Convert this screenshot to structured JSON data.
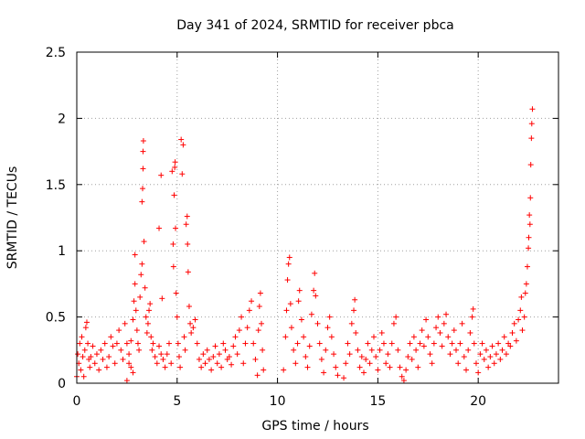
{
  "chart_data": {
    "type": "scatter",
    "title": "Day 341 of 2024, SRMTID for receiver pbca",
    "xlabel": "GPS time / hours",
    "ylabel": "SRMTID / TECUs",
    "xlim": [
      0,
      24
    ],
    "ylim": [
      0,
      2.5
    ],
    "x_ticks": [
      0,
      5,
      10,
      15,
      20
    ],
    "x_tick_labels": [
      "0",
      "5",
      "10",
      "15",
      "20"
    ],
    "y_ticks": [
      0,
      0.5,
      1,
      1.5,
      2,
      2.5
    ],
    "y_tick_labels": [
      "0",
      "0.5",
      "1",
      "1.5",
      "2",
      "2.5"
    ],
    "grid": true,
    "marker": "+",
    "series_color": "#ff0000",
    "series": [
      {
        "name": "SRMTID",
        "points": [
          [
            0.0,
            0.05
          ],
          [
            0.05,
            0.22
          ],
          [
            0.1,
            0.15
          ],
          [
            0.15,
            0.3
          ],
          [
            0.2,
            0.1
          ],
          [
            0.25,
            0.35
          ],
          [
            0.3,
            0.2
          ],
          [
            0.35,
            0.05
          ],
          [
            0.4,
            0.25
          ],
          [
            0.45,
            0.42
          ],
          [
            0.5,
            0.46
          ],
          [
            0.55,
            0.3
          ],
          [
            0.6,
            0.18
          ],
          [
            0.65,
            0.12
          ],
          [
            0.7,
            0.2
          ],
          [
            0.8,
            0.28
          ],
          [
            0.9,
            0.15
          ],
          [
            1.0,
            0.22
          ],
          [
            1.1,
            0.1
          ],
          [
            1.2,
            0.25
          ],
          [
            1.3,
            0.18
          ],
          [
            1.4,
            0.3
          ],
          [
            1.5,
            0.12
          ],
          [
            1.6,
            0.2
          ],
          [
            1.7,
            0.35
          ],
          [
            1.8,
            0.28
          ],
          [
            1.9,
            0.15
          ],
          [
            2.0,
            0.3
          ],
          [
            2.1,
            0.4
          ],
          [
            2.2,
            0.25
          ],
          [
            2.3,
            0.18
          ],
          [
            2.4,
            0.45
          ],
          [
            2.5,
            0.3
          ],
          [
            2.6,
            0.22
          ],
          [
            2.7,
            0.12
          ],
          [
            2.8,
            0.08
          ],
          [
            2.5,
            0.02
          ],
          [
            2.6,
            0.15
          ],
          [
            2.7,
            0.32
          ],
          [
            2.8,
            0.48
          ],
          [
            2.85,
            0.62
          ],
          [
            2.9,
            0.75
          ],
          [
            2.9,
            0.97
          ],
          [
            2.95,
            0.55
          ],
          [
            3.0,
            0.4
          ],
          [
            3.05,
            0.3
          ],
          [
            3.1,
            0.25
          ],
          [
            3.15,
            0.65
          ],
          [
            3.2,
            0.82
          ],
          [
            3.25,
            0.9
          ],
          [
            3.25,
            1.37
          ],
          [
            3.28,
            1.47
          ],
          [
            3.3,
            1.62
          ],
          [
            3.3,
            1.75
          ],
          [
            3.32,
            1.83
          ],
          [
            3.35,
            1.07
          ],
          [
            3.4,
            0.72
          ],
          [
            3.45,
            0.5
          ],
          [
            3.5,
            0.38
          ],
          [
            3.55,
            0.45
          ],
          [
            3.6,
            0.55
          ],
          [
            3.65,
            0.6
          ],
          [
            3.7,
            0.35
          ],
          [
            3.75,
            0.25
          ],
          [
            3.8,
            0.3
          ],
          [
            3.9,
            0.2
          ],
          [
            4.0,
            0.15
          ],
          [
            4.1,
            0.28
          ],
          [
            4.2,
            0.22
          ],
          [
            4.1,
            1.17
          ],
          [
            4.2,
            1.57
          ],
          [
            4.25,
            0.64
          ],
          [
            4.3,
            0.18
          ],
          [
            4.4,
            0.12
          ],
          [
            4.5,
            0.22
          ],
          [
            4.6,
            0.3
          ],
          [
            4.7,
            0.15
          ],
          [
            4.75,
            1.6
          ],
          [
            4.8,
            1.05
          ],
          [
            4.82,
            0.88
          ],
          [
            4.85,
            1.42
          ],
          [
            4.88,
            1.63
          ],
          [
            4.9,
            1.67
          ],
          [
            4.92,
            1.17
          ],
          [
            4.95,
            0.68
          ],
          [
            5.0,
            0.5
          ],
          [
            5.05,
            0.3
          ],
          [
            5.1,
            0.2
          ],
          [
            5.15,
            0.12
          ],
          [
            5.2,
            1.84
          ],
          [
            5.25,
            1.58
          ],
          [
            5.3,
            1.8
          ],
          [
            5.35,
            0.35
          ],
          [
            5.4,
            0.25
          ],
          [
            5.45,
            1.2
          ],
          [
            5.5,
            1.26
          ],
          [
            5.52,
            1.05
          ],
          [
            5.55,
            0.84
          ],
          [
            5.6,
            0.58
          ],
          [
            5.65,
            0.45
          ],
          [
            5.7,
            0.38
          ],
          [
            5.8,
            0.42
          ],
          [
            5.9,
            0.48
          ],
          [
            6.0,
            0.3
          ],
          [
            6.1,
            0.18
          ],
          [
            6.2,
            0.12
          ],
          [
            6.3,
            0.22
          ],
          [
            6.4,
            0.15
          ],
          [
            6.5,
            0.25
          ],
          [
            6.6,
            0.18
          ],
          [
            6.7,
            0.1
          ],
          [
            6.8,
            0.2
          ],
          [
            6.9,
            0.28
          ],
          [
            7.0,
            0.15
          ],
          [
            7.1,
            0.22
          ],
          [
            7.2,
            0.12
          ],
          [
            7.3,
            0.3
          ],
          [
            7.4,
            0.25
          ],
          [
            7.5,
            0.18
          ],
          [
            7.6,
            0.2
          ],
          [
            7.7,
            0.14
          ],
          [
            7.8,
            0.28
          ],
          [
            7.9,
            0.35
          ],
          [
            8.0,
            0.22
          ],
          [
            8.1,
            0.4
          ],
          [
            8.2,
            0.5
          ],
          [
            8.3,
            0.15
          ],
          [
            8.4,
            0.3
          ],
          [
            8.5,
            0.42
          ],
          [
            8.6,
            0.55
          ],
          [
            8.7,
            0.62
          ],
          [
            8.8,
            0.3
          ],
          [
            8.9,
            0.18
          ],
          [
            9.0,
            0.06
          ],
          [
            9.05,
            0.4
          ],
          [
            9.1,
            0.58
          ],
          [
            9.15,
            0.68
          ],
          [
            9.2,
            0.45
          ],
          [
            9.25,
            0.25
          ],
          [
            9.3,
            0.1
          ],
          [
            10.3,
            0.1
          ],
          [
            10.4,
            0.35
          ],
          [
            10.45,
            0.55
          ],
          [
            10.5,
            0.78
          ],
          [
            10.55,
            0.9
          ],
          [
            10.6,
            0.95
          ],
          [
            10.65,
            0.6
          ],
          [
            10.7,
            0.42
          ],
          [
            10.8,
            0.25
          ],
          [
            10.9,
            0.15
          ],
          [
            11.0,
            0.3
          ],
          [
            11.05,
            0.62
          ],
          [
            11.1,
            0.7
          ],
          [
            11.2,
            0.48
          ],
          [
            11.3,
            0.35
          ],
          [
            11.4,
            0.2
          ],
          [
            11.5,
            0.12
          ],
          [
            11.6,
            0.28
          ],
          [
            11.7,
            0.52
          ],
          [
            11.8,
            0.7
          ],
          [
            11.85,
            0.83
          ],
          [
            11.9,
            0.66
          ],
          [
            12.0,
            0.45
          ],
          [
            12.1,
            0.3
          ],
          [
            12.2,
            0.18
          ],
          [
            12.3,
            0.08
          ],
          [
            12.4,
            0.25
          ],
          [
            12.5,
            0.42
          ],
          [
            12.6,
            0.5
          ],
          [
            12.7,
            0.35
          ],
          [
            12.8,
            0.22
          ],
          [
            12.9,
            0.12
          ],
          [
            13.0,
            0.06
          ],
          [
            13.3,
            0.04
          ],
          [
            13.4,
            0.15
          ],
          [
            13.5,
            0.3
          ],
          [
            13.6,
            0.22
          ],
          [
            13.7,
            0.45
          ],
          [
            13.8,
            0.55
          ],
          [
            13.85,
            0.63
          ],
          [
            13.9,
            0.38
          ],
          [
            14.0,
            0.25
          ],
          [
            14.1,
            0.12
          ],
          [
            14.2,
            0.2
          ],
          [
            14.3,
            0.08
          ],
          [
            14.4,
            0.18
          ],
          [
            14.5,
            0.3
          ],
          [
            14.6,
            0.15
          ],
          [
            14.7,
            0.25
          ],
          [
            14.8,
            0.35
          ],
          [
            14.9,
            0.2
          ],
          [
            15.0,
            0.1
          ],
          [
            15.1,
            0.25
          ],
          [
            15.2,
            0.38
          ],
          [
            15.3,
            0.3
          ],
          [
            15.4,
            0.15
          ],
          [
            15.5,
            0.22
          ],
          [
            15.6,
            0.12
          ],
          [
            15.7,
            0.3
          ],
          [
            15.8,
            0.45
          ],
          [
            15.9,
            0.5
          ],
          [
            16.0,
            0.25
          ],
          [
            16.1,
            0.12
          ],
          [
            16.2,
            0.05
          ],
          [
            16.3,
            0.02
          ],
          [
            16.4,
            0.1
          ],
          [
            16.5,
            0.2
          ],
          [
            16.6,
            0.3
          ],
          [
            16.7,
            0.18
          ],
          [
            16.8,
            0.35
          ],
          [
            16.9,
            0.25
          ],
          [
            17.0,
            0.12
          ],
          [
            17.1,
            0.3
          ],
          [
            17.2,
            0.4
          ],
          [
            17.3,
            0.28
          ],
          [
            17.4,
            0.48
          ],
          [
            17.5,
            0.35
          ],
          [
            17.6,
            0.22
          ],
          [
            17.7,
            0.15
          ],
          [
            17.8,
            0.3
          ],
          [
            17.9,
            0.42
          ],
          [
            18.0,
            0.5
          ],
          [
            18.1,
            0.38
          ],
          [
            18.2,
            0.28
          ],
          [
            18.3,
            0.45
          ],
          [
            18.4,
            0.52
          ],
          [
            18.5,
            0.35
          ],
          [
            18.6,
            0.22
          ],
          [
            18.7,
            0.3
          ],
          [
            18.8,
            0.4
          ],
          [
            18.9,
            0.25
          ],
          [
            19.0,
            0.15
          ],
          [
            19.1,
            0.3
          ],
          [
            19.2,
            0.45
          ],
          [
            19.3,
            0.2
          ],
          [
            19.4,
            0.1
          ],
          [
            19.5,
            0.25
          ],
          [
            19.6,
            0.38
          ],
          [
            19.7,
            0.5
          ],
          [
            19.75,
            0.56
          ],
          [
            19.8,
            0.3
          ],
          [
            19.9,
            0.15
          ],
          [
            20.0,
            0.08
          ],
          [
            20.1,
            0.22
          ],
          [
            20.2,
            0.3
          ],
          [
            20.3,
            0.18
          ],
          [
            20.4,
            0.25
          ],
          [
            20.5,
            0.12
          ],
          [
            20.6,
            0.2
          ],
          [
            20.7,
            0.28
          ],
          [
            20.8,
            0.15
          ],
          [
            20.9,
            0.22
          ],
          [
            21.0,
            0.3
          ],
          [
            21.1,
            0.18
          ],
          [
            21.2,
            0.25
          ],
          [
            21.3,
            0.35
          ],
          [
            21.4,
            0.22
          ],
          [
            21.5,
            0.3
          ],
          [
            21.6,
            0.28
          ],
          [
            21.7,
            0.38
          ],
          [
            21.8,
            0.45
          ],
          [
            21.9,
            0.32
          ],
          [
            22.0,
            0.48
          ],
          [
            22.1,
            0.55
          ],
          [
            22.15,
            0.65
          ],
          [
            22.2,
            0.4
          ],
          [
            22.3,
            0.5
          ],
          [
            22.35,
            0.68
          ],
          [
            22.4,
            0.75
          ],
          [
            22.45,
            0.88
          ],
          [
            22.5,
            1.02
          ],
          [
            22.52,
            1.1
          ],
          [
            22.55,
            1.27
          ],
          [
            22.58,
            1.2
          ],
          [
            22.6,
            1.4
          ],
          [
            22.62,
            1.65
          ],
          [
            22.65,
            1.85
          ],
          [
            22.67,
            1.96
          ],
          [
            22.7,
            2.07
          ]
        ]
      }
    ]
  }
}
